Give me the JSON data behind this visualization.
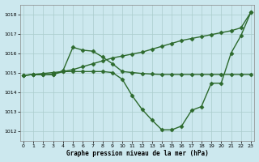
{
  "xlabel": "Graphe pression niveau de la mer (hPa)",
  "x_ticks": [
    0,
    1,
    2,
    3,
    4,
    5,
    6,
    7,
    8,
    9,
    10,
    11,
    12,
    13,
    14,
    15,
    16,
    17,
    18,
    19,
    20,
    21,
    22,
    23
  ],
  "ylim": [
    1011.5,
    1018.5
  ],
  "xlim": [
    -0.3,
    23.3
  ],
  "yticks": [
    1012,
    1013,
    1014,
    1015,
    1016,
    1017,
    1018
  ],
  "bg_color": "#cce8ee",
  "grid_color": "#aacccc",
  "line_color": "#2d6a2d",
  "line_diagonal": [
    1014.85,
    1014.9,
    1014.95,
    1015.0,
    1015.05,
    1015.15,
    1015.3,
    1015.45,
    1015.6,
    1015.75,
    1015.85,
    1015.95,
    1016.05,
    1016.2,
    1016.35,
    1016.5,
    1016.65,
    1016.75,
    1016.85,
    1016.95,
    1017.05,
    1017.15,
    1017.3,
    1018.1
  ],
  "line_peak": [
    1014.85,
    1014.9,
    1014.88,
    1014.9,
    1015.1,
    1016.3,
    1016.15,
    1016.1,
    1015.8,
    1015.45,
    1015.05,
    1015.0,
    1014.95,
    1014.92,
    1014.9,
    1014.9,
    1014.9,
    1014.9,
    1014.9,
    1014.9,
    1014.9,
    1014.9,
    1014.9,
    1014.9
  ],
  "line_dip": [
    1014.85,
    1014.9,
    1014.88,
    1014.9,
    1015.05,
    1015.05,
    1015.05,
    1015.05,
    1015.05,
    1015.0,
    1014.65,
    1013.8,
    1013.1,
    1012.55,
    1012.05,
    1012.05,
    1012.25,
    1013.05,
    1013.25,
    1014.45,
    1014.45,
    1016.0,
    1016.9,
    1018.1
  ],
  "marker": "D",
  "markersize": 2.5,
  "linewidth": 1.0
}
